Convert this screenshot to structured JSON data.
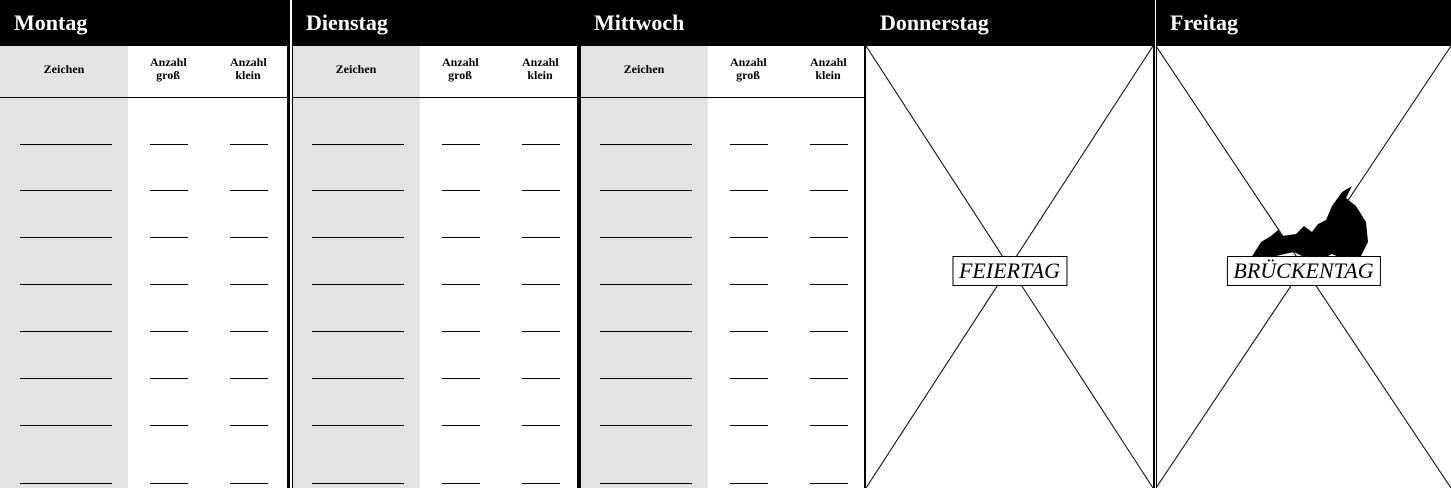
{
  "days": [
    {
      "name": "Montag",
      "columns": [
        "Zeichen",
        "Anzahl groß",
        "Anzahl klein"
      ]
    },
    {
      "name": "Dienstag",
      "columns": [
        "Zeichen",
        "Anzahl groß",
        "Anzahl klein"
      ]
    },
    {
      "name": "Mittwoch",
      "columns": [
        "Zeichen",
        "Anzahl groß",
        "Anzahl klein"
      ]
    },
    {
      "name": "Donnerstag",
      "label": "FEIERTAG"
    },
    {
      "name": "Freitag",
      "label": "BRÜCKENTAG"
    }
  ]
}
